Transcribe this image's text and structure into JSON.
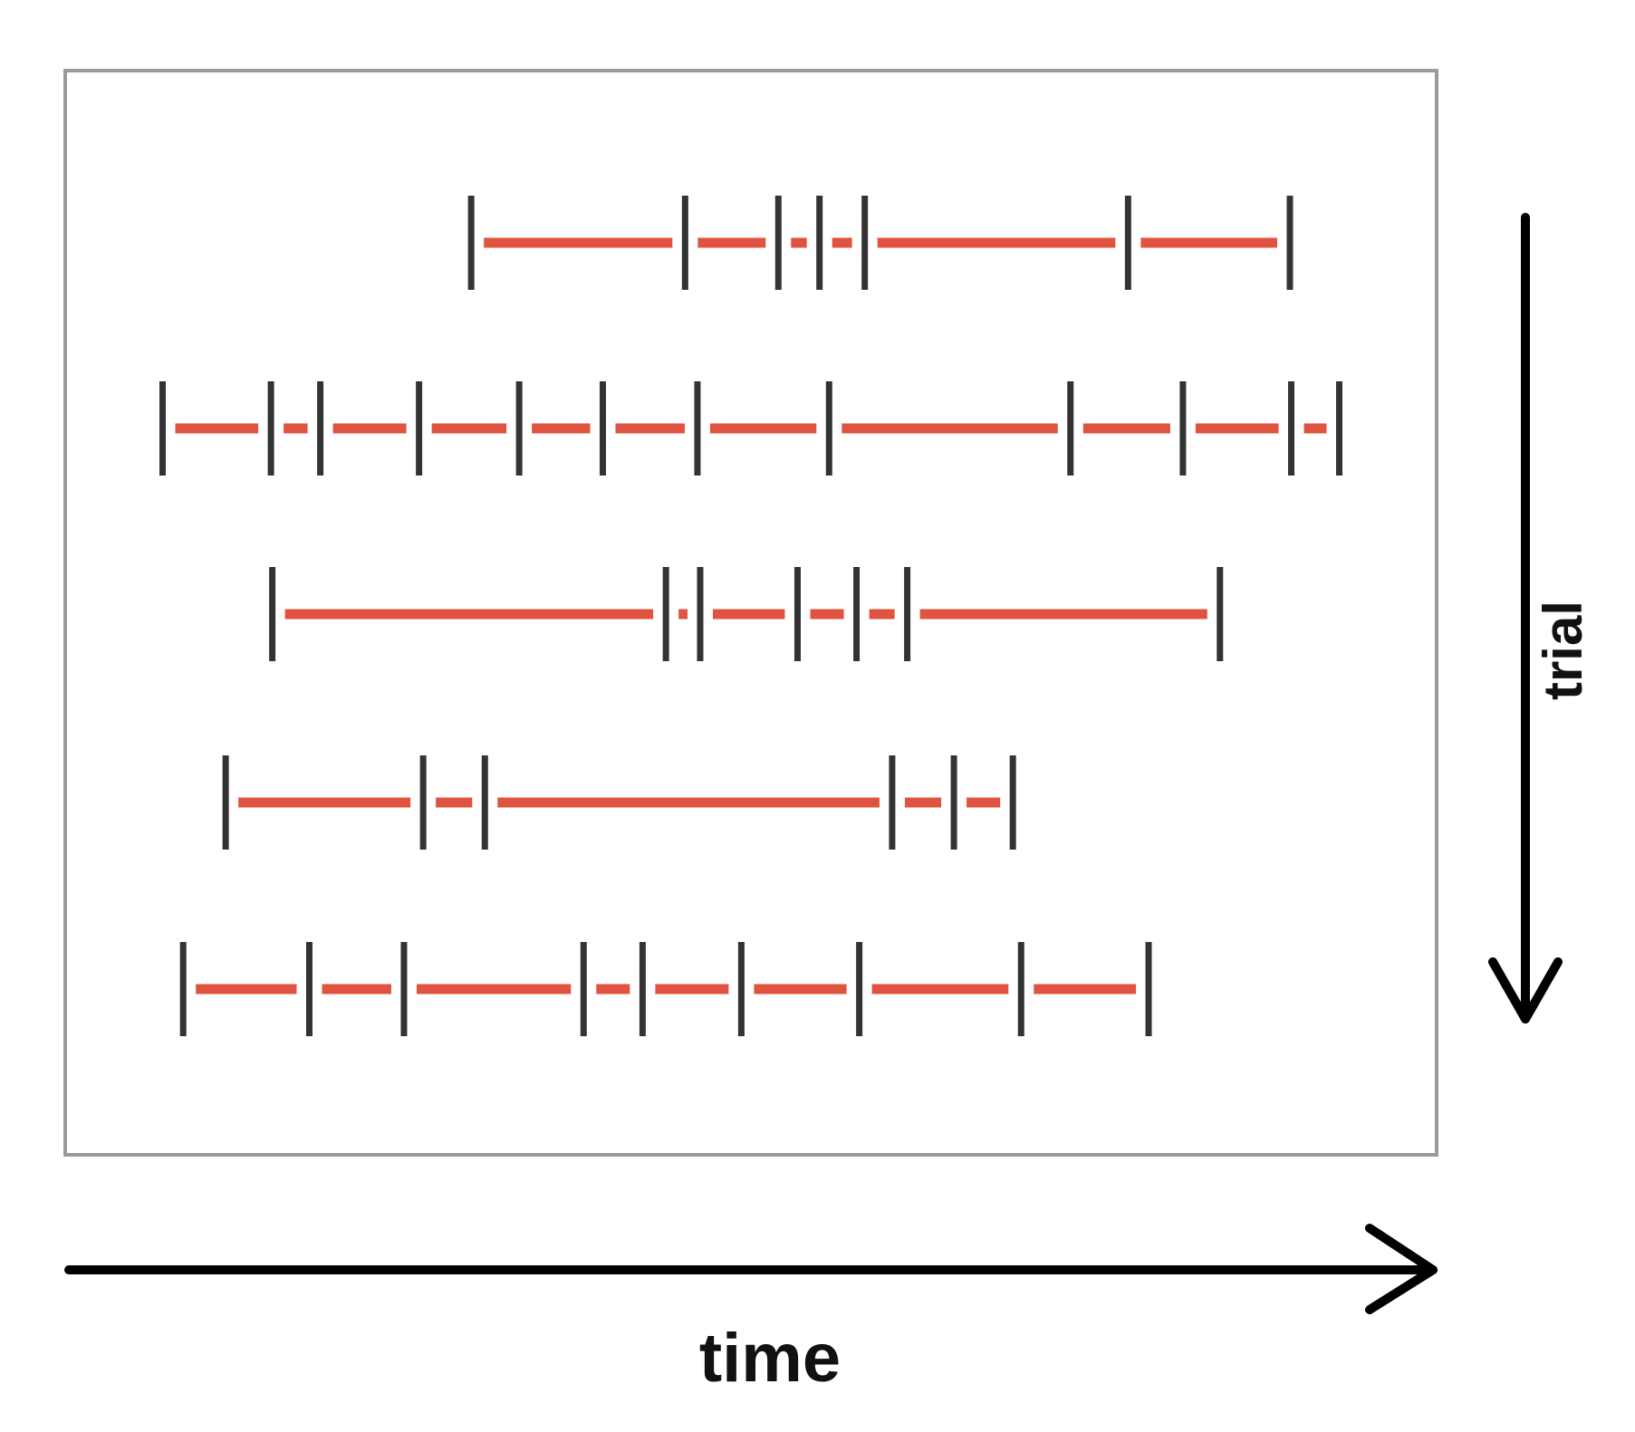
{
  "labels": {
    "x_axis": "time",
    "y_axis": "trial"
  },
  "colors": {
    "interval": "#e0543f",
    "spike": "#333333",
    "frame": "#9a9a9a",
    "arrow": "#000000"
  },
  "trials": [
    {
      "spikes": [
        0.296,
        0.452,
        0.52,
        0.55,
        0.583,
        0.775,
        0.893
      ]
    },
    {
      "spikes": [
        0.071,
        0.15,
        0.186,
        0.258,
        0.331,
        0.392,
        0.461,
        0.557,
        0.733,
        0.815,
        0.894,
        0.929
      ]
    },
    {
      "spikes": [
        0.151,
        0.438,
        0.463,
        0.534,
        0.577,
        0.614,
        0.842
      ]
    },
    {
      "spikes": [
        0.117,
        0.261,
        0.306,
        0.603,
        0.648,
        0.691
      ]
    },
    {
      "spikes": [
        0.086,
        0.178,
        0.247,
        0.378,
        0.421,
        0.493,
        0.579,
        0.697,
        0.79
      ]
    }
  ]
}
